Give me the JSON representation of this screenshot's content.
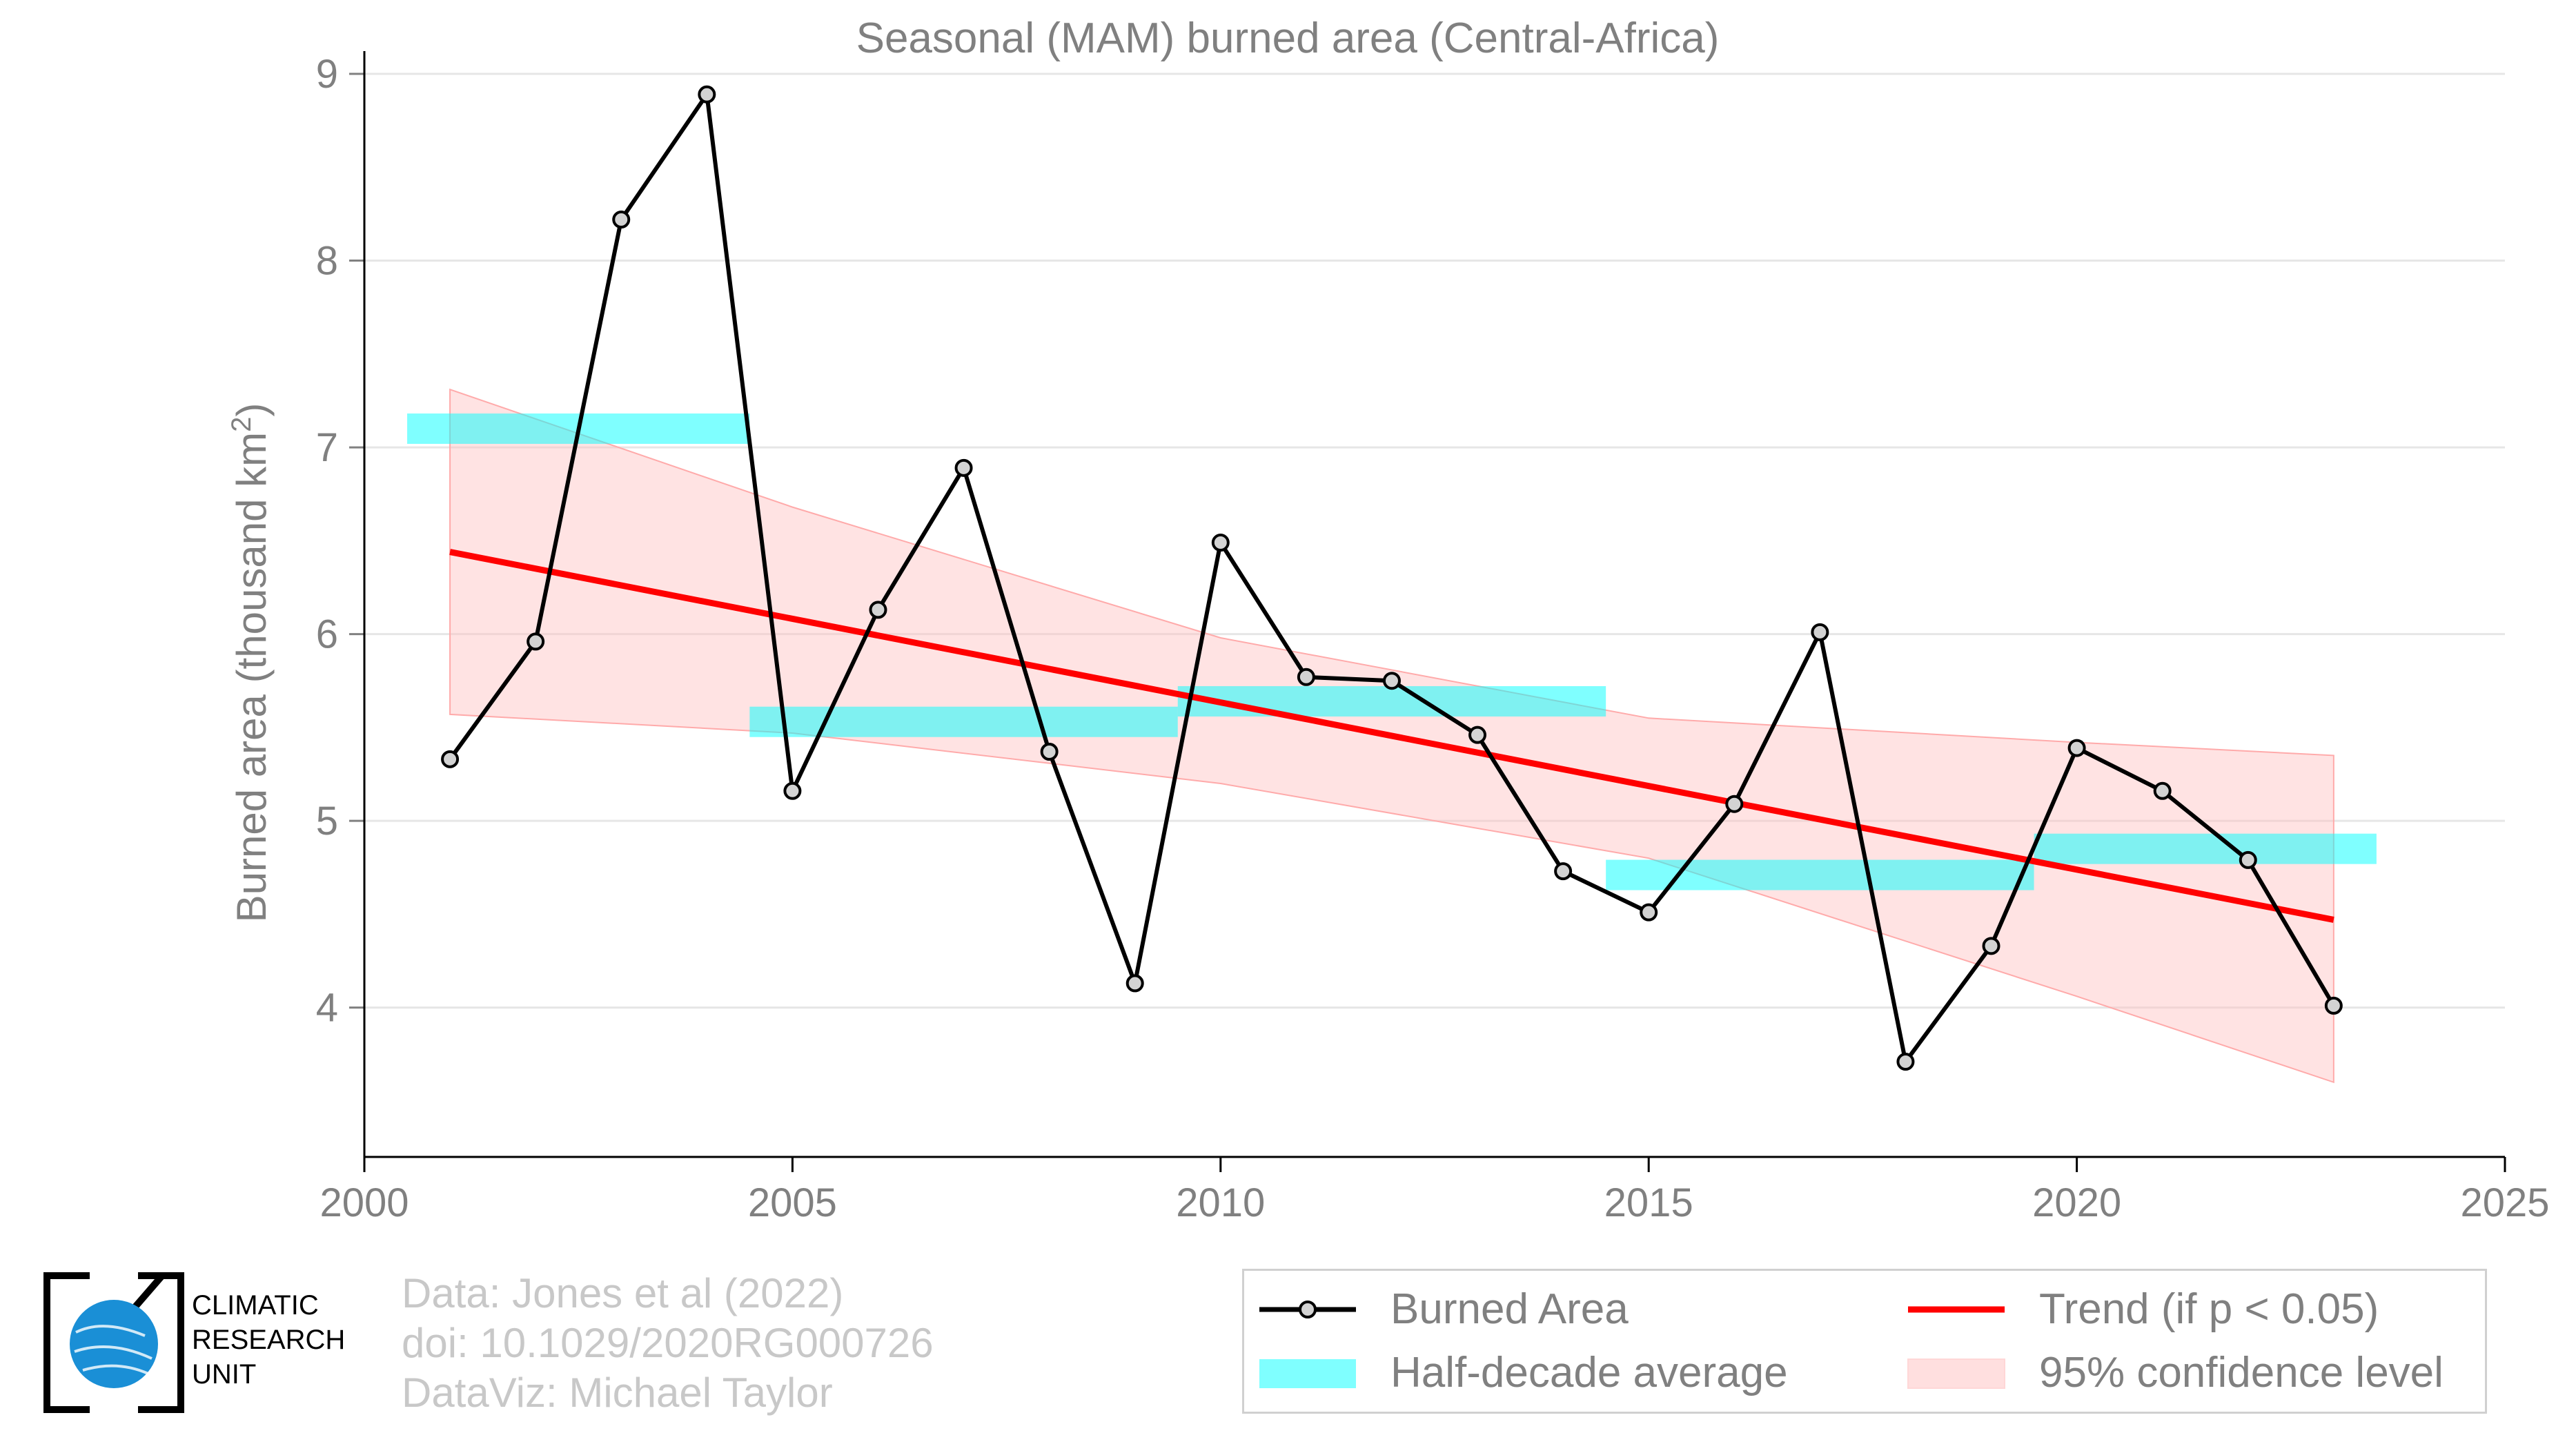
{
  "chart_data": {
    "type": "line",
    "title": "Seasonal (MAM) burned area (Central-Africa)",
    "ylabel": "Burned area (thousand km",
    "ylabel_sup": "2",
    "ylabel_end": ")",
    "xlim": [
      2000,
      2025
    ],
    "ylim": [
      3.2,
      9.1
    ],
    "xticks": [
      "2000",
      "2005",
      "2010",
      "2015",
      "2020",
      "2025"
    ],
    "yticks": [
      "4",
      "5",
      "6",
      "7",
      "8",
      "9"
    ],
    "grid": "horizontal",
    "series": [
      {
        "name": "Burned Area",
        "color": "#000000",
        "x": [
          2001,
          2002,
          2003,
          2004,
          2005,
          2006,
          2007,
          2008,
          2009,
          2010,
          2011,
          2012,
          2013,
          2014,
          2015,
          2016,
          2017,
          2018,
          2019,
          2020,
          2021,
          2022,
          2023
        ],
        "y": [
          5.33,
          5.96,
          8.22,
          8.89,
          5.16,
          6.13,
          6.89,
          5.37,
          4.13,
          6.49,
          5.77,
          5.75,
          5.46,
          4.73,
          4.51,
          5.09,
          6.01,
          3.71,
          4.33,
          5.39,
          5.16,
          4.79,
          4.01
        ]
      }
    ],
    "half_decade_average": {
      "name": "Half-decade average",
      "color": "#00ffff",
      "segments": [
        {
          "x0": 2000.5,
          "x1": 2004.5,
          "y": 7.1
        },
        {
          "x0": 2004.5,
          "x1": 2009.5,
          "y": 5.53
        },
        {
          "x0": 2009.5,
          "x1": 2014.5,
          "y": 5.64
        },
        {
          "x0": 2014.5,
          "x1": 2019.5,
          "y": 4.71
        },
        {
          "x0": 2019.5,
          "x1": 2023.5,
          "y": 4.85
        }
      ]
    },
    "trend": {
      "name": "Trend (if p < 0.05)",
      "color": "#ff0000",
      "x": [
        2001,
        2023
      ],
      "y": [
        6.44,
        4.47
      ]
    },
    "confidence": {
      "name": "95% confidence level",
      "color": "#ffc0c0",
      "x": [
        2001,
        2005,
        2010,
        2015,
        2020,
        2023
      ],
      "upper": [
        7.31,
        6.68,
        5.98,
        5.55,
        5.42,
        5.35
      ],
      "lower": [
        5.57,
        5.47,
        5.2,
        4.8,
        4.06,
        3.6
      ]
    }
  },
  "credits": {
    "line1": "Data: Jones et al (2022)",
    "line2": "doi: 10.1029/2020RG000726",
    "line3": "DataViz: Michael Taylor"
  },
  "logo": {
    "line1": "CLIMATIC",
    "line2": "RESEARCH",
    "line3": "UNIT",
    "color": "#1a8fd6"
  },
  "legend": {
    "burned_area": "Burned Area",
    "half_decade": "Half-decade average",
    "trend": "Trend (if p < 0.05)",
    "confidence": "95% confidence level"
  }
}
